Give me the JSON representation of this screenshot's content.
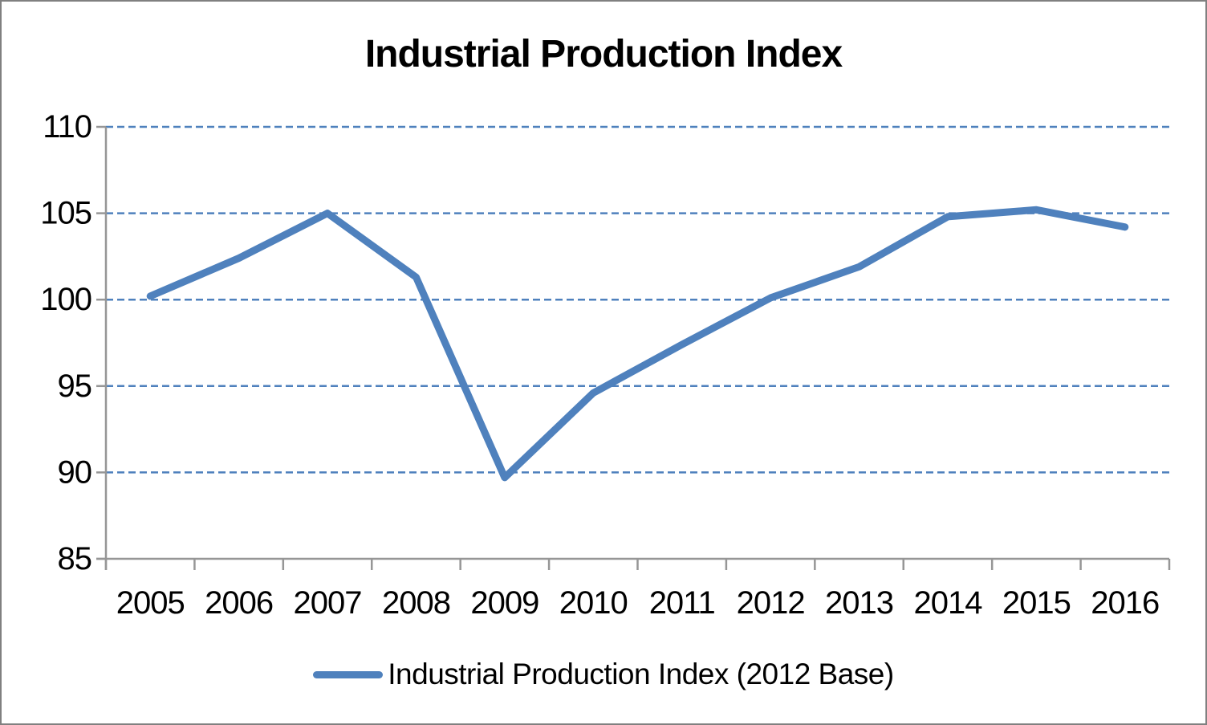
{
  "window": {
    "background": "#FFFFFF",
    "border_color": "#808080"
  },
  "chart_data": {
    "type": "line",
    "title": "Industrial Production Index",
    "categories": [
      "2005",
      "2006",
      "2007",
      "2008",
      "2009",
      "2010",
      "2011",
      "2012",
      "2013",
      "2014",
      "2015",
      "2016"
    ],
    "series": [
      {
        "name": "Industrial Production Index (2012 Base)",
        "color": "#4F81BD",
        "values": [
          100.2,
          102.4,
          105.0,
          101.3,
          89.7,
          94.6,
          97.4,
          100.1,
          101.9,
          104.8,
          105.2,
          104.2
        ]
      }
    ],
    "xlabel": "",
    "ylabel": "",
    "ylim": [
      85,
      110
    ],
    "yticks": [
      85,
      90,
      95,
      100,
      105,
      110
    ],
    "grid": {
      "horizontal": true,
      "style": "dashed",
      "color": "#4F81BD"
    },
    "legend": {
      "position": "bottom",
      "entries": [
        "Industrial Production Index (2012 Base)"
      ]
    },
    "axis_color": "#969696",
    "text_color": "#000000"
  }
}
